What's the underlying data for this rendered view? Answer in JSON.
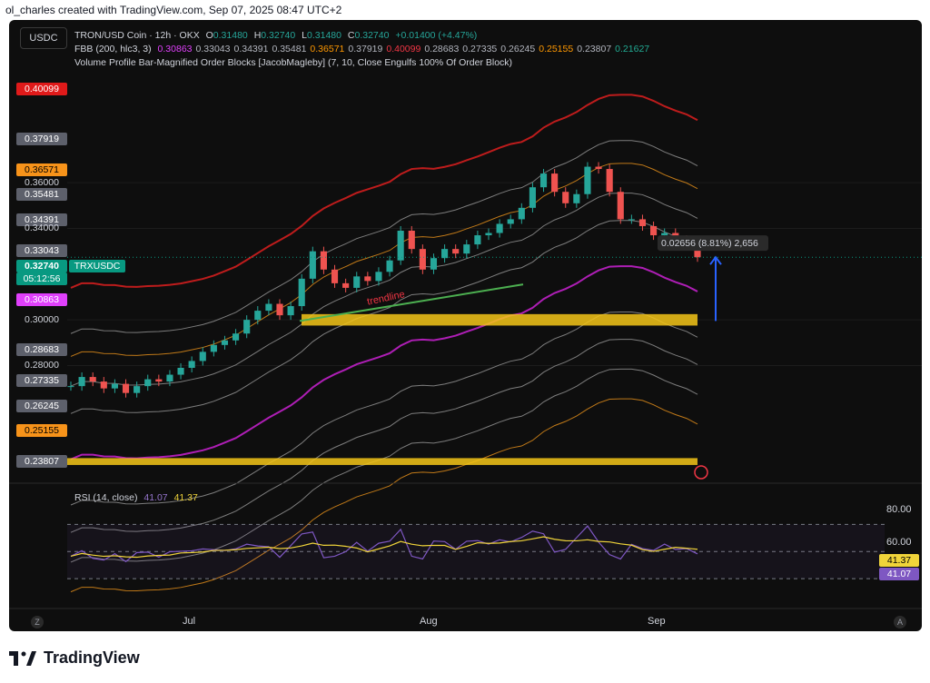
{
  "header": {
    "credit": "ol_charles created with TradingView.com, Sep 07, 2025 08:47 UTC+2"
  },
  "symbol_button": "USDC",
  "legend": {
    "line1": {
      "title": "TRON/USD Coin · 12h · OKX",
      "o_label": "O",
      "o": "0.31480",
      "h_label": "H",
      "h": "0.32740",
      "l_label": "L",
      "l": "0.31480",
      "c_label": "C",
      "c": "0.32740",
      "change": "+0.01400 (+4.47%)"
    },
    "line2": {
      "name": "FBB (200, hlc3, 3)",
      "values": [
        {
          "v": "0.30863",
          "color": "#e040fb"
        },
        {
          "v": "0.33043",
          "color": "#b2b5be"
        },
        {
          "v": "0.34391",
          "color": "#b2b5be"
        },
        {
          "v": "0.35481",
          "color": "#b2b5be"
        },
        {
          "v": "0.36571",
          "color": "#ff9800"
        },
        {
          "v": "0.37919",
          "color": "#b2b5be"
        },
        {
          "v": "0.40099",
          "color": "#f23645"
        },
        {
          "v": "0.28683",
          "color": "#b2b5be"
        },
        {
          "v": "0.27335",
          "color": "#b2b5be"
        },
        {
          "v": "0.26245",
          "color": "#b2b5be"
        },
        {
          "v": "0.25155",
          "color": "#ff9800"
        },
        {
          "v": "0.23807",
          "color": "#b2b5be"
        },
        {
          "v": "0.21627",
          "color": "#22ab94"
        }
      ]
    },
    "line3": "Volume Profile Bar-Magnified Order Blocks [JacobMagleby] (7, 10, Close Engulfs 100% Of Order Block)"
  },
  "price_labels": [
    {
      "text": "0.40099",
      "price": 0.40099,
      "bg": "#e01a1a",
      "fg": "#ffffff"
    },
    {
      "text": "0.37919",
      "price": 0.37919,
      "bg": "#5d606b",
      "fg": "#ffffff"
    },
    {
      "text": "0.36571",
      "price": 0.36571,
      "bg": "#f7931a",
      "fg": "#000000"
    },
    {
      "text": "0.36000",
      "price": 0.36,
      "bg": "",
      "fg": "#d1d4dc"
    },
    {
      "text": "0.35481",
      "price": 0.35481,
      "bg": "#5d606b",
      "fg": "#ffffff"
    },
    {
      "text": "0.34391",
      "price": 0.34391,
      "bg": "#5d606b",
      "fg": "#ffffff"
    },
    {
      "text": "0.34000",
      "price": 0.34,
      "bg": "",
      "fg": "#d1d4dc"
    },
    {
      "text": "0.33043",
      "price": 0.33043,
      "bg": "#5d606b",
      "fg": "#ffffff"
    },
    {
      "text": "0.30863",
      "price": 0.30863,
      "bg": "#e040fb",
      "fg": "#ffffff"
    },
    {
      "text": "0.30000",
      "price": 0.3,
      "bg": "",
      "fg": "#d1d4dc"
    },
    {
      "text": "0.28683",
      "price": 0.28683,
      "bg": "#5d606b",
      "fg": "#ffffff"
    },
    {
      "text": "0.28000",
      "price": 0.28,
      "bg": "",
      "fg": "#d1d4dc"
    },
    {
      "text": "0.27335",
      "price": 0.27335,
      "bg": "#5d606b",
      "fg": "#ffffff"
    },
    {
      "text": "0.26245",
      "price": 0.26245,
      "bg": "#5d606b",
      "fg": "#ffffff"
    },
    {
      "text": "0.25155",
      "price": 0.25155,
      "bg": "#f7931a",
      "fg": "#000000"
    },
    {
      "text": "0.23807",
      "price": 0.23807,
      "bg": "#5d606b",
      "fg": "#ffffff"
    }
  ],
  "current_price": {
    "value": "0.32740",
    "countdown": "05:12:56",
    "ticker": "TRXUSDC",
    "color": "#089981"
  },
  "annotations": {
    "trendline": "trendline",
    "measure": "0.02656 (8.81%) 2,656"
  },
  "rsi": {
    "title": "RSI (14, close)",
    "rsi_value": "41.07",
    "ma_value": "41.37",
    "levels": [
      "80.00",
      "60.00"
    ],
    "rsi_color": "#7e57c2",
    "ma_color": "#f0d43a"
  },
  "time_axis": [
    "Jul",
    "Aug",
    "Sep"
  ],
  "corners": {
    "left": "Z",
    "right": "A"
  },
  "footer": {
    "brand": "TradingView"
  },
  "chart_data": {
    "type": "line",
    "title": "TRON/USD Coin · 12h · OKX",
    "ylim": [
      0.225,
      0.418
    ],
    "series": [
      {
        "name": "TRXUSDC",
        "values": [
          0.271,
          0.275,
          0.273,
          0.27,
          0.272,
          0.268,
          0.271,
          0.274,
          0.273,
          0.276,
          0.279,
          0.282,
          0.286,
          0.289,
          0.291,
          0.294,
          0.3,
          0.304,
          0.307,
          0.302,
          0.306,
          0.318,
          0.33,
          0.322,
          0.316,
          0.314,
          0.319,
          0.317,
          0.321,
          0.326,
          0.339,
          0.331,
          0.322,
          0.327,
          0.331,
          0.329,
          0.333,
          0.337,
          0.338,
          0.342,
          0.344,
          0.349,
          0.358,
          0.364,
          0.356,
          0.351,
          0.355,
          0.367,
          0.366,
          0.356,
          0.344,
          0.344,
          0.341,
          0.337,
          0.338,
          0.335,
          0.333,
          0.3274
        ]
      }
    ]
  }
}
